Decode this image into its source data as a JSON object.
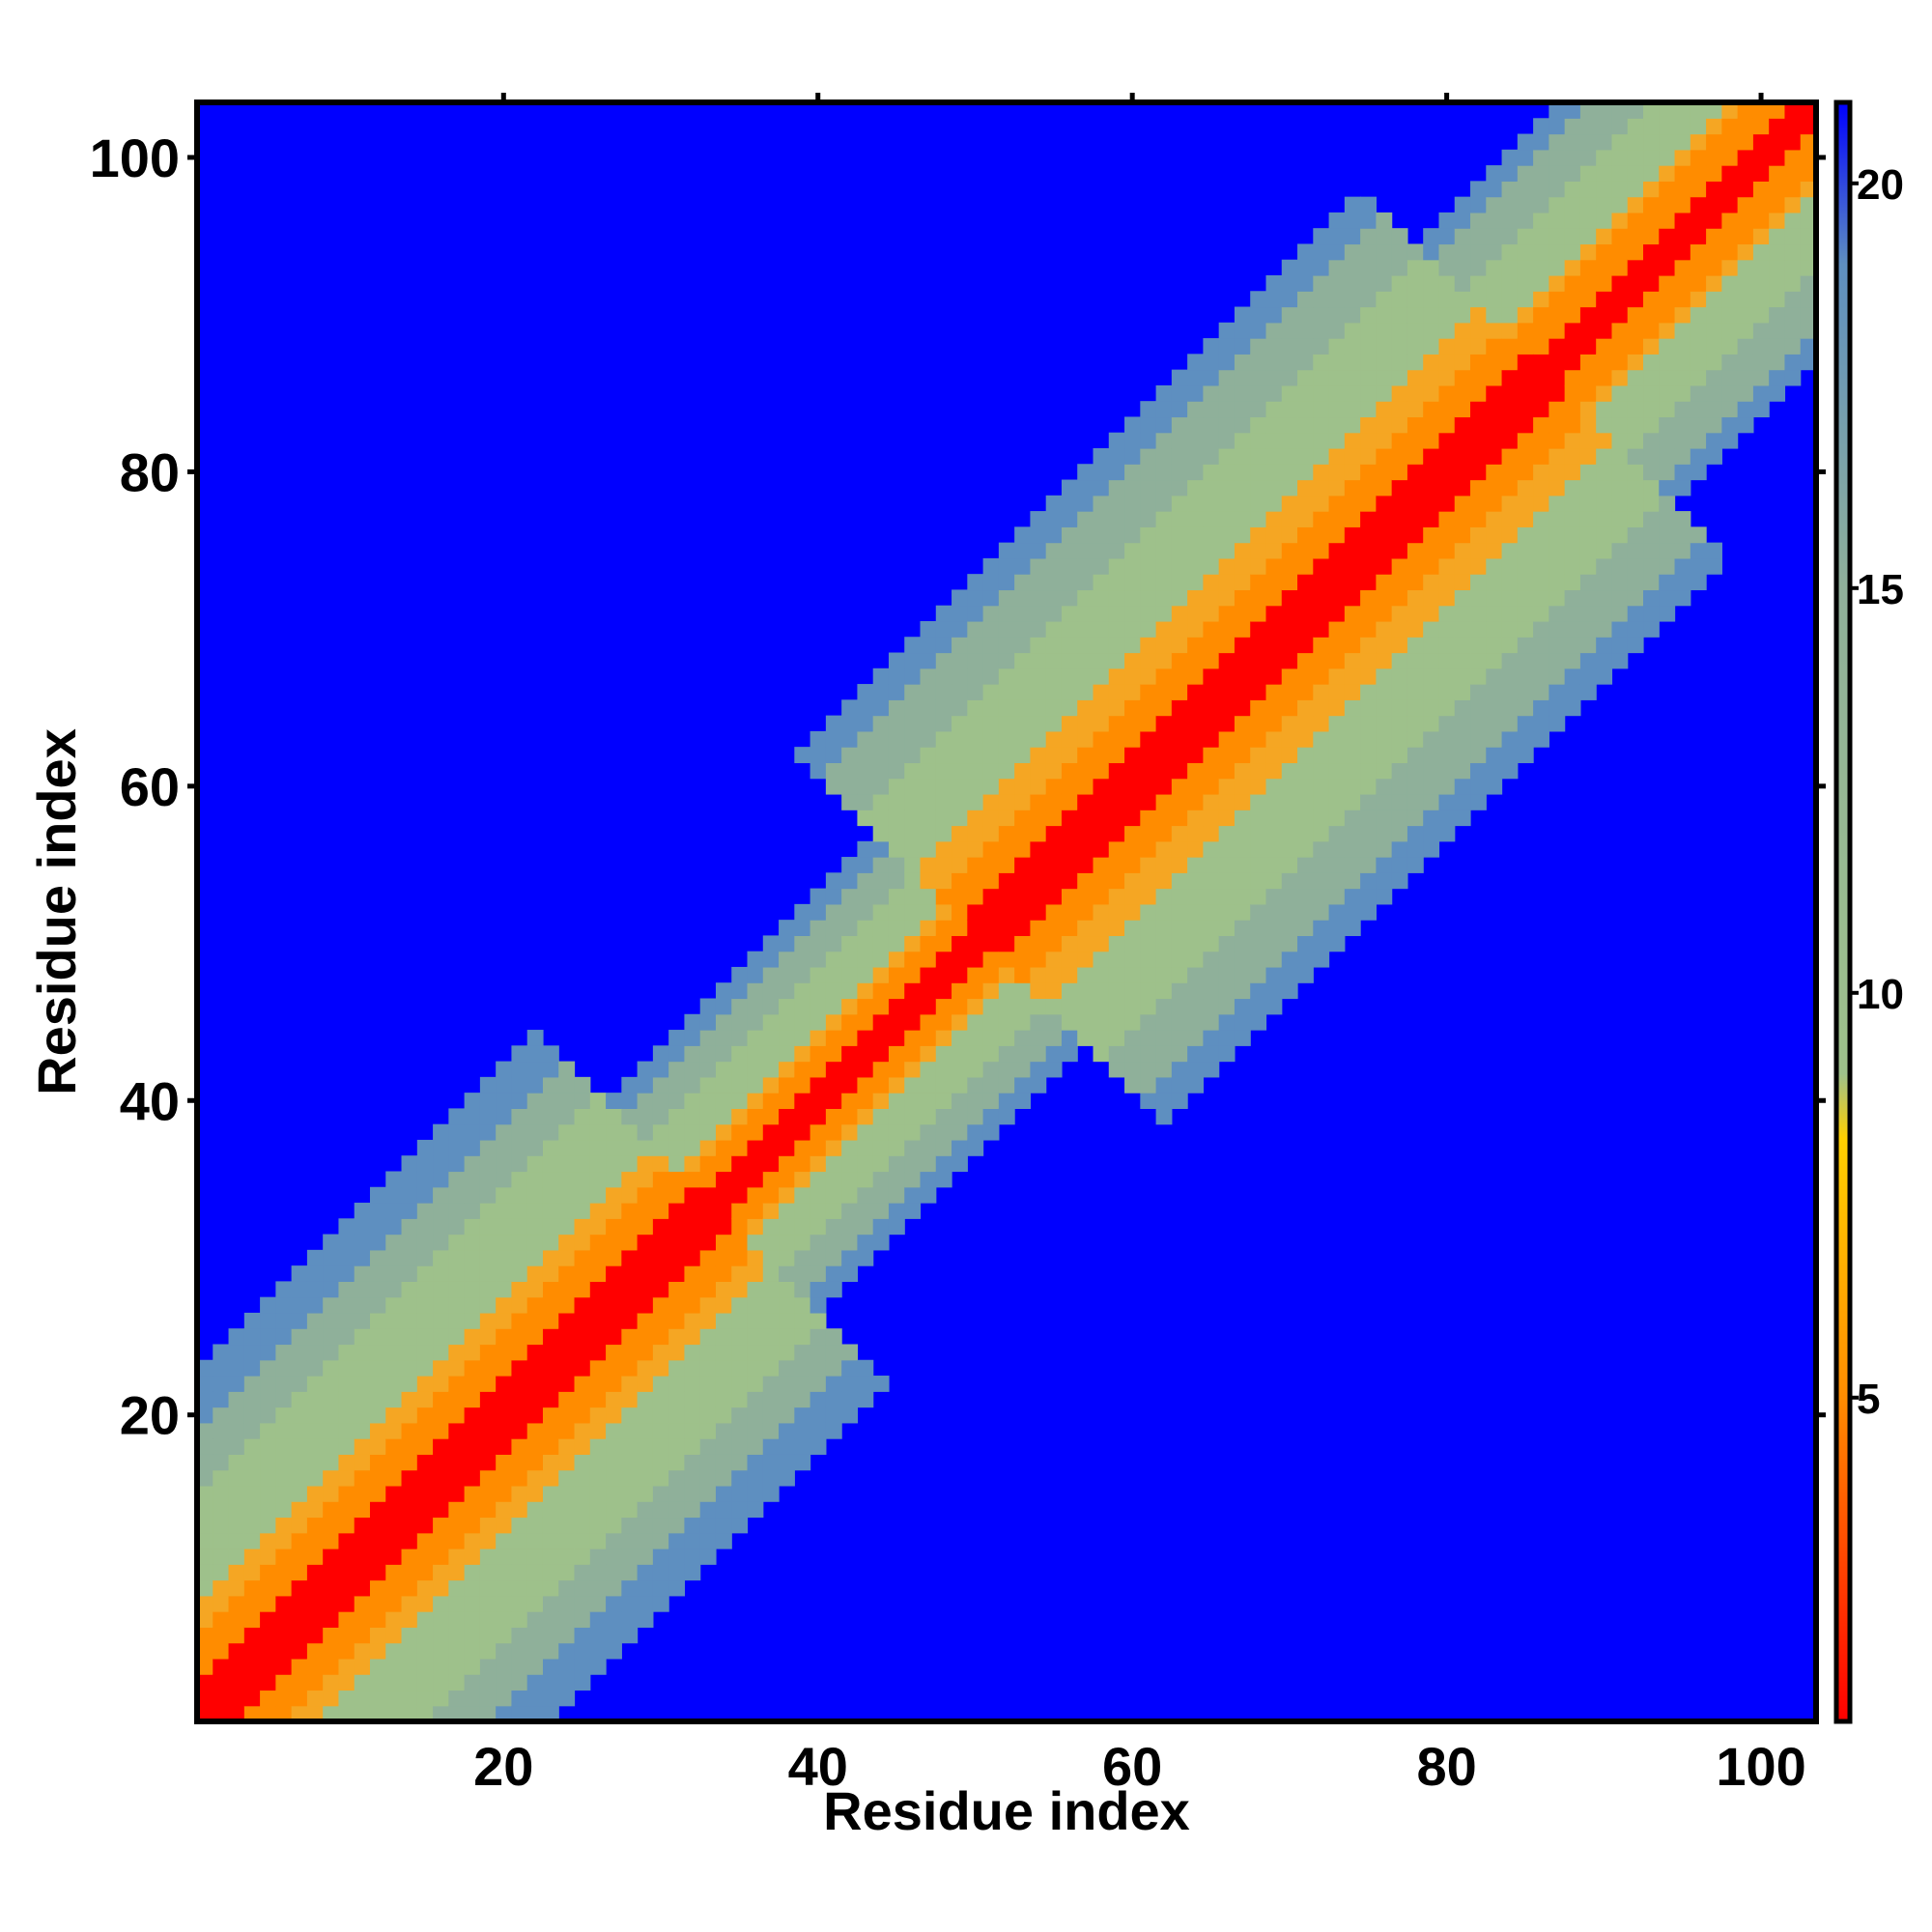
{
  "chart_data": {
    "type": "heatmap",
    "title": "",
    "xlabel": "Residue index",
    "ylabel": "Residue index",
    "n_residues": 103,
    "xlim": [
      0.5,
      103.5
    ],
    "ylim": [
      0.5,
      103.5
    ],
    "x_ticks": [
      20,
      40,
      60,
      80,
      100
    ],
    "y_ticks": [
      20,
      40,
      60,
      80,
      100
    ],
    "colorbar": {
      "range": [
        1,
        21
      ],
      "ticks": [
        5,
        10,
        15,
        20
      ],
      "colors": [
        "#ff0000",
        "#ff8c00",
        "#ffd000",
        "#9ec18b",
        "#5e8fc0",
        "#0000ff"
      ]
    },
    "saturation_color": "#0000ff",
    "band": {
      "description_values": "distance increases from diagonal; values above 21 shown as saturation color",
      "core_value": 1,
      "sections": [
        {
          "start": 1,
          "end": 33,
          "growth": 0.9
        },
        {
          "start": 34,
          "end": 50,
          "growth": 1.45
        },
        {
          "start": 51,
          "end": 86,
          "growth": 0.85
        },
        {
          "start": 87,
          "end": 103,
          "growth": 1.2
        }
      ]
    }
  }
}
